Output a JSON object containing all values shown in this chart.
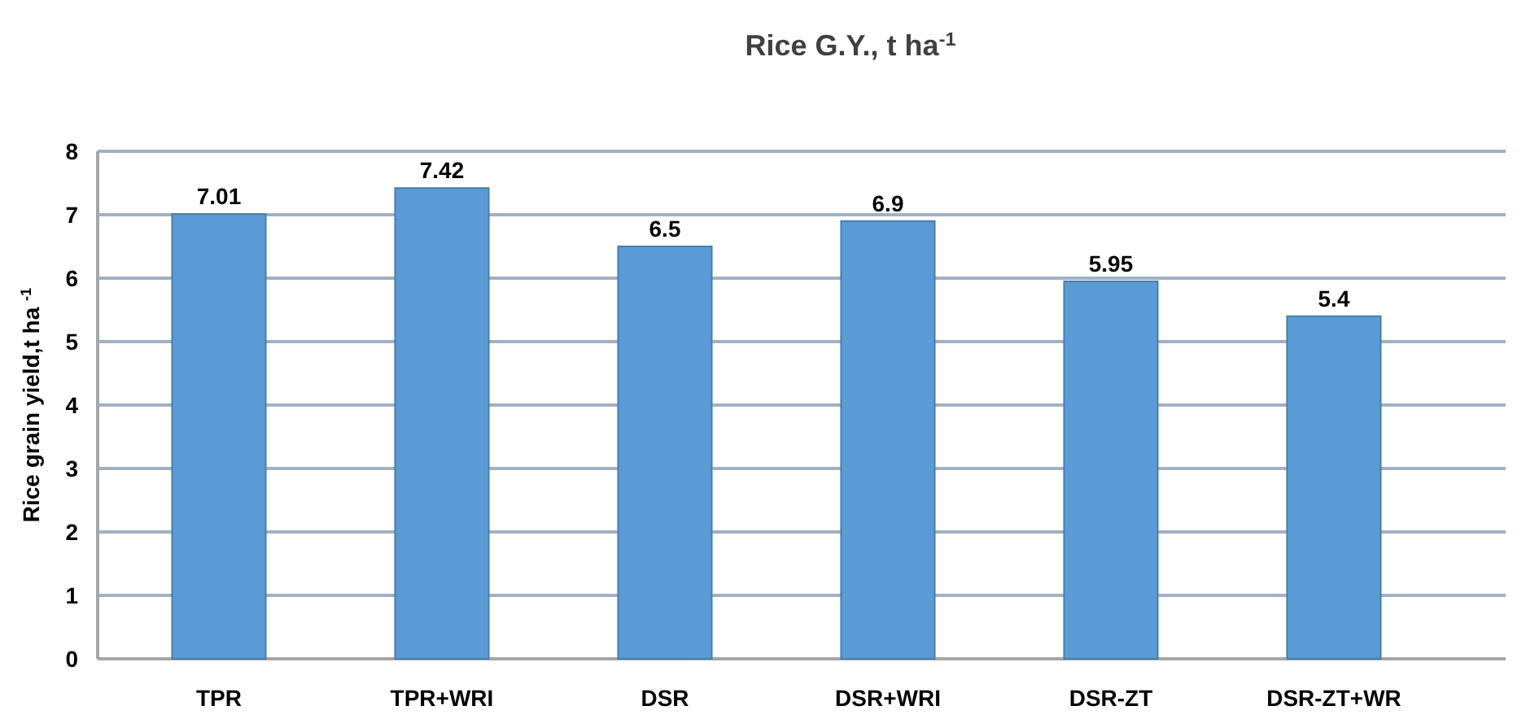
{
  "chart_data": {
    "type": "bar",
    "title": "Rice G.Y., t ha$^{-1}$",
    "ylabel": "Rice grain yield,t ha $^{-1}$",
    "categories": [
      "TPR",
      "TPR+WRI",
      "DSR",
      "DSR+WRI",
      "DSR-ZT",
      "DSR-ZT+WR"
    ],
    "values": [
      7.01,
      7.42,
      6.5,
      6.9,
      5.95,
      5.4
    ],
    "color": "#5b9bd5",
    "ylim": [
      0,
      8
    ],
    "yticks": [
      0,
      1,
      2,
      3,
      4,
      5,
      6,
      7,
      8
    ],
    "grid": "y",
    "data_labels": true
  }
}
